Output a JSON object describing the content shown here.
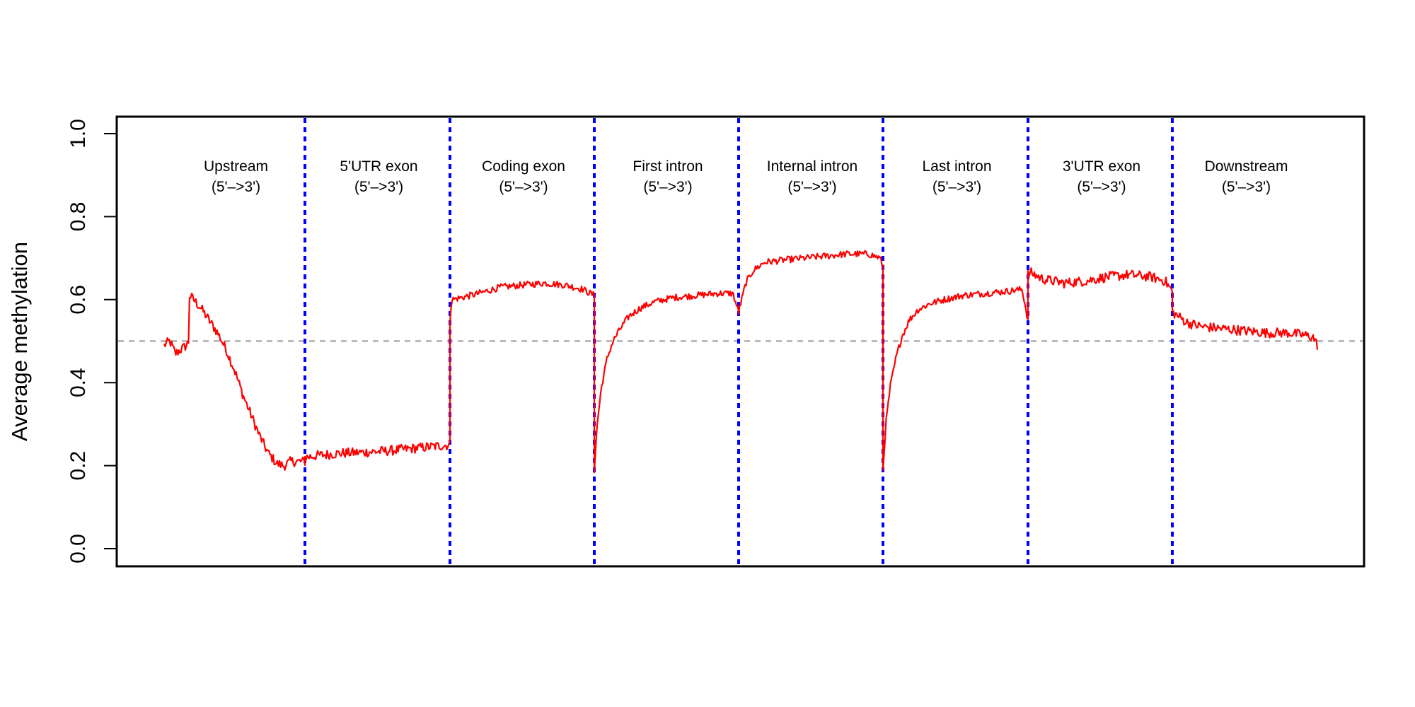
{
  "chart_data": {
    "type": "line",
    "ylabel": "Average methylation",
    "xlabel": "",
    "ylim": [
      0,
      1
    ],
    "yticks": [
      "0.0",
      "0.2",
      "0.4",
      "0.6",
      "0.8",
      "1.0"
    ],
    "baseline": {
      "y": 0.5,
      "color": "#bbbbbb",
      "style": "dashed"
    },
    "divider_color": "#0000ff",
    "line_color": "#ff0000",
    "grid": false,
    "legend": "none",
    "regions": [
      {
        "name": "Upstream",
        "direction": "(5'–>3')",
        "profile": [
          [
            0.0,
            0.49
          ],
          [
            0.04,
            0.5
          ],
          [
            0.08,
            0.47
          ],
          [
            0.12,
            0.48
          ],
          [
            0.16,
            0.49
          ],
          [
            0.175,
            0.5
          ],
          [
            0.18,
            0.61
          ],
          [
            0.21,
            0.6
          ],
          [
            0.26,
            0.58
          ],
          [
            0.32,
            0.55
          ],
          [
            0.38,
            0.52
          ],
          [
            0.44,
            0.48
          ],
          [
            0.5,
            0.43
          ],
          [
            0.56,
            0.37
          ],
          [
            0.62,
            0.32
          ],
          [
            0.68,
            0.27
          ],
          [
            0.74,
            0.23
          ],
          [
            0.8,
            0.205
          ],
          [
            0.85,
            0.2
          ],
          [
            0.9,
            0.21
          ],
          [
            1.0,
            0.21
          ]
        ]
      },
      {
        "name": "5'UTR exon",
        "direction": "(5'–>3')",
        "profile": [
          [
            0.0,
            0.22
          ],
          [
            0.1,
            0.225
          ],
          [
            0.25,
            0.23
          ],
          [
            0.4,
            0.232
          ],
          [
            0.55,
            0.235
          ],
          [
            0.7,
            0.24
          ],
          [
            0.85,
            0.245
          ],
          [
            1.0,
            0.25
          ]
        ]
      },
      {
        "name": "Coding exon",
        "direction": "(5'–>3')",
        "profile": [
          [
            0.0,
            0.55
          ],
          [
            0.01,
            0.6
          ],
          [
            0.08,
            0.605
          ],
          [
            0.2,
            0.615
          ],
          [
            0.35,
            0.63
          ],
          [
            0.5,
            0.635
          ],
          [
            0.65,
            0.64
          ],
          [
            0.8,
            0.635
          ],
          [
            0.92,
            0.625
          ],
          [
            1.0,
            0.61
          ]
        ]
      },
      {
        "name": "First intron",
        "direction": "(5'–>3')",
        "profile": [
          [
            0.0,
            0.19
          ],
          [
            0.02,
            0.3
          ],
          [
            0.05,
            0.39
          ],
          [
            0.09,
            0.46
          ],
          [
            0.13,
            0.5
          ],
          [
            0.18,
            0.53
          ],
          [
            0.24,
            0.56
          ],
          [
            0.32,
            0.58
          ],
          [
            0.42,
            0.595
          ],
          [
            0.55,
            0.605
          ],
          [
            0.7,
            0.61
          ],
          [
            0.85,
            0.615
          ],
          [
            0.96,
            0.615
          ],
          [
            1.0,
            0.57
          ]
        ]
      },
      {
        "name": "Internal intron",
        "direction": "(5'–>3')",
        "profile": [
          [
            0.0,
            0.57
          ],
          [
            0.05,
            0.64
          ],
          [
            0.1,
            0.67
          ],
          [
            0.18,
            0.69
          ],
          [
            0.3,
            0.695
          ],
          [
            0.45,
            0.7
          ],
          [
            0.6,
            0.705
          ],
          [
            0.75,
            0.71
          ],
          [
            0.9,
            0.71
          ],
          [
            0.98,
            0.7
          ],
          [
            1.0,
            0.68
          ]
        ]
      },
      {
        "name": "Last intron",
        "direction": "(5'–>3')",
        "profile": [
          [
            0.0,
            0.19
          ],
          [
            0.02,
            0.3
          ],
          [
            0.05,
            0.39
          ],
          [
            0.09,
            0.46
          ],
          [
            0.13,
            0.51
          ],
          [
            0.18,
            0.55
          ],
          [
            0.24,
            0.575
          ],
          [
            0.32,
            0.59
          ],
          [
            0.42,
            0.6
          ],
          [
            0.55,
            0.61
          ],
          [
            0.7,
            0.615
          ],
          [
            0.85,
            0.62
          ],
          [
            0.96,
            0.625
          ],
          [
            1.0,
            0.55
          ]
        ]
      },
      {
        "name": "3'UTR exon",
        "direction": "(5'–>3')",
        "profile": [
          [
            0.0,
            0.66
          ],
          [
            0.02,
            0.665
          ],
          [
            0.1,
            0.65
          ],
          [
            0.25,
            0.64
          ],
          [
            0.4,
            0.645
          ],
          [
            0.55,
            0.655
          ],
          [
            0.7,
            0.66
          ],
          [
            0.85,
            0.655
          ],
          [
            0.95,
            0.645
          ],
          [
            1.0,
            0.62
          ]
        ]
      },
      {
        "name": "Downstream",
        "direction": "(5'–>3')",
        "profile": [
          [
            0.0,
            0.57
          ],
          [
            0.04,
            0.56
          ],
          [
            0.1,
            0.545
          ],
          [
            0.2,
            0.535
          ],
          [
            0.35,
            0.53
          ],
          [
            0.5,
            0.525
          ],
          [
            0.65,
            0.52
          ],
          [
            0.8,
            0.52
          ],
          [
            0.9,
            0.515
          ],
          [
            0.97,
            0.51
          ],
          [
            1.0,
            0.49
          ]
        ]
      }
    ]
  }
}
